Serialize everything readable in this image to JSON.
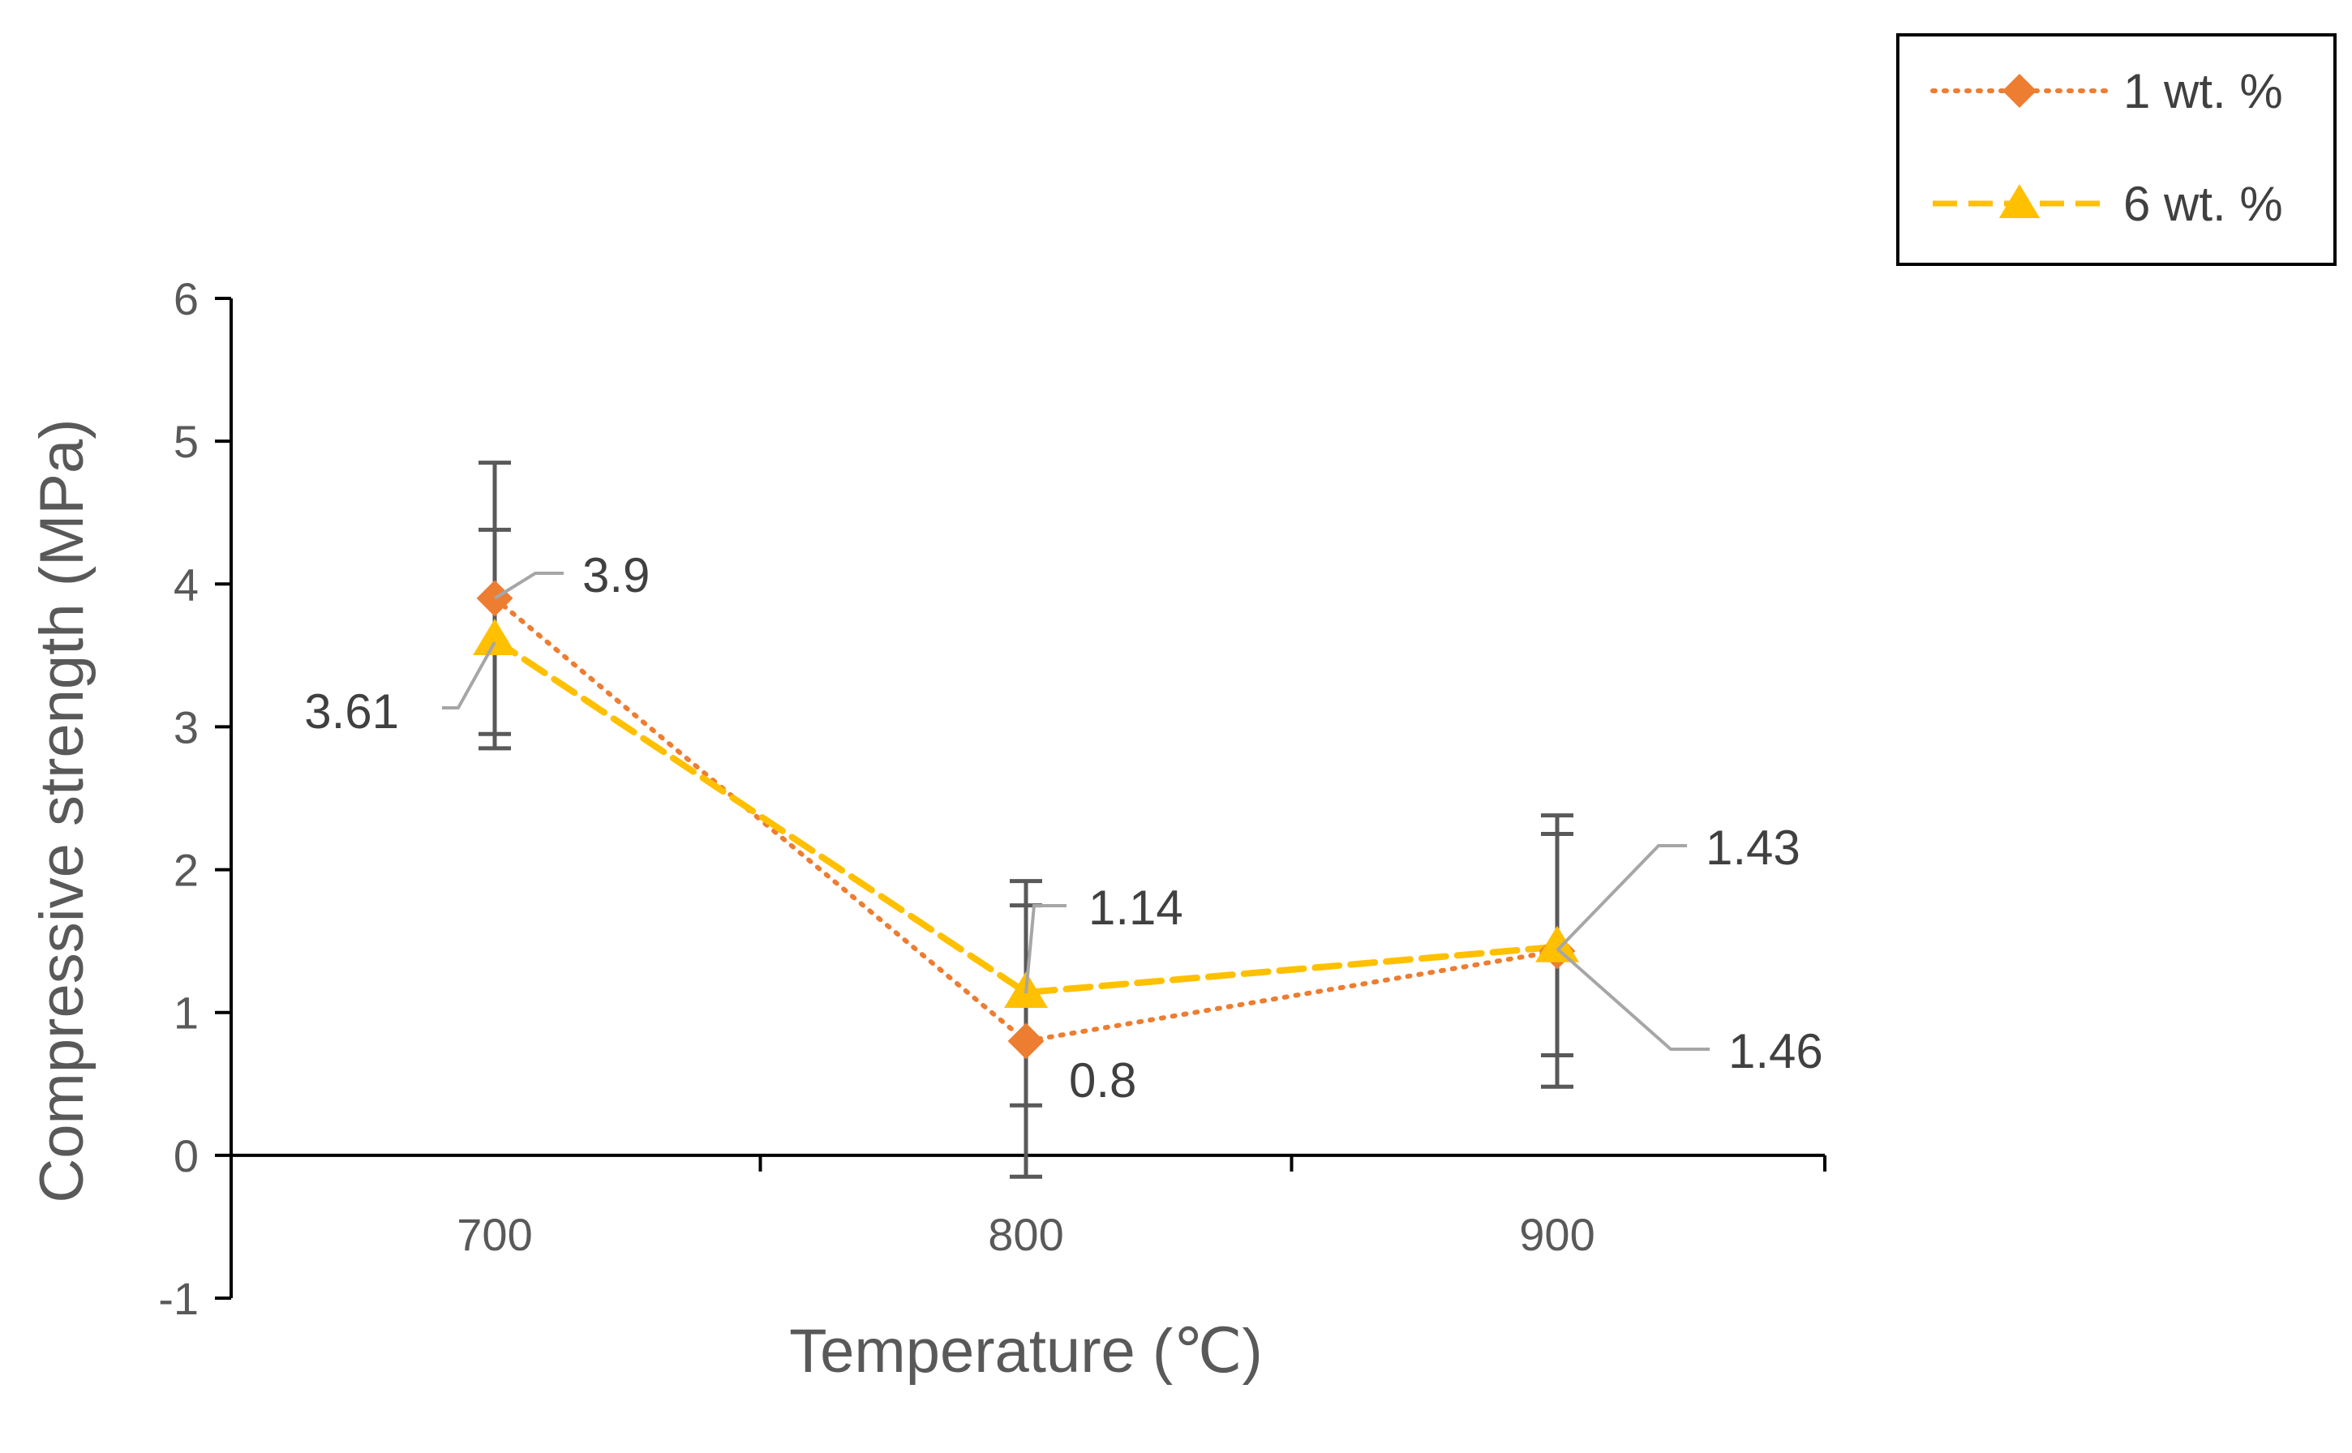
{
  "chart_data": {
    "type": "line",
    "title": "",
    "xlabel": "Temperature (℃)",
    "ylabel": "Compressive strength (MPa)",
    "categories": [
      "700",
      "800",
      "900"
    ],
    "ylim": [
      -1,
      6
    ],
    "yticks": [
      "-1",
      "0",
      "1",
      "2",
      "3",
      "4",
      "5",
      "6"
    ],
    "grid": false,
    "legend_position": "top-right",
    "series": [
      {
        "name": "1 wt. %",
        "values": [
          3.9,
          0.8,
          1.43
        ],
        "data_labels": [
          "3.9",
          "0.8",
          "1.43"
        ],
        "error_low": [
          2.95,
          0.35,
          0.7
        ],
        "error_high": [
          4.85,
          1.75,
          2.38
        ],
        "color": "#ED7D31",
        "marker": "diamond",
        "line_style": "dotted"
      },
      {
        "name": "6 wt. %",
        "values": [
          3.61,
          1.14,
          1.46
        ],
        "data_labels": [
          "3.61",
          "1.14",
          "1.46"
        ],
        "error_low": [
          2.85,
          -0.15,
          0.48
        ],
        "error_high": [
          4.38,
          1.92,
          2.25
        ],
        "color": "#FFC000",
        "marker": "triangle",
        "line_style": "dashed"
      }
    ]
  },
  "colors": {
    "axis": "#000000",
    "error_bar": "#595959",
    "leader_line": "#A6A6A6"
  }
}
